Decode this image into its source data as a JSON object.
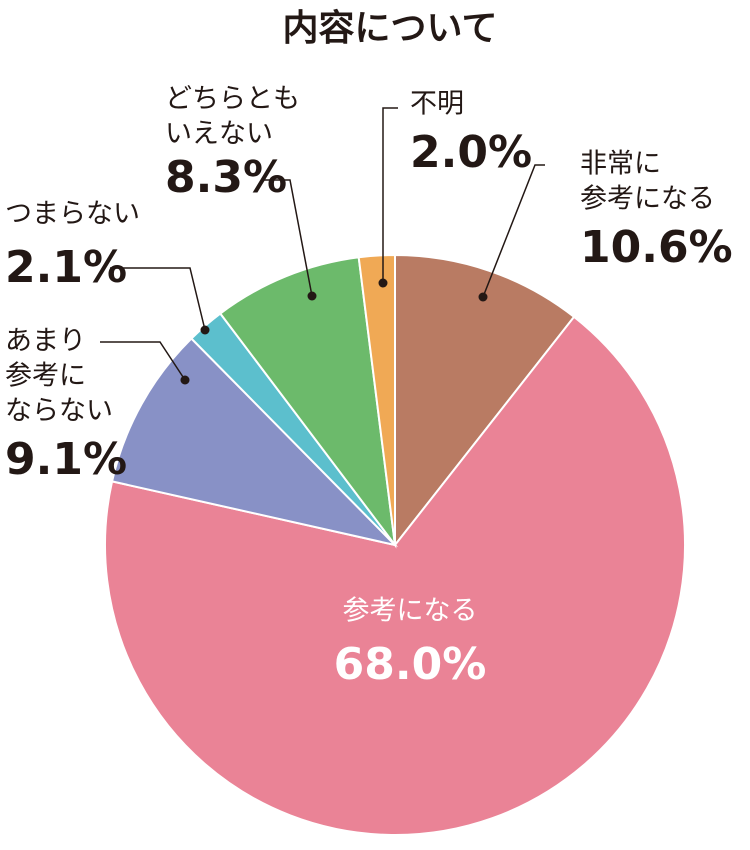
{
  "chart_data": {
    "type": "pie",
    "title": "内容について",
    "categories": [
      [
        "非常に",
        "参考になる"
      ],
      [
        "参考になる"
      ],
      [
        "あまり",
        "参考に",
        "ならない"
      ],
      [
        "つまらない"
      ],
      [
        "どちらとも",
        "いえない"
      ],
      [
        "不明"
      ]
    ],
    "values": [
      10.6,
      68.0,
      9.1,
      2.1,
      8.3,
      2.0
    ],
    "value_labels": [
      "10.6%",
      "68.0%",
      "9.1%",
      "2.1%",
      "8.3%",
      "2.0%"
    ],
    "colors": [
      "#b97b63",
      "#ea8396",
      "#8891c6",
      "#5cbfcd",
      "#6cba6b",
      "#f0a955"
    ]
  }
}
